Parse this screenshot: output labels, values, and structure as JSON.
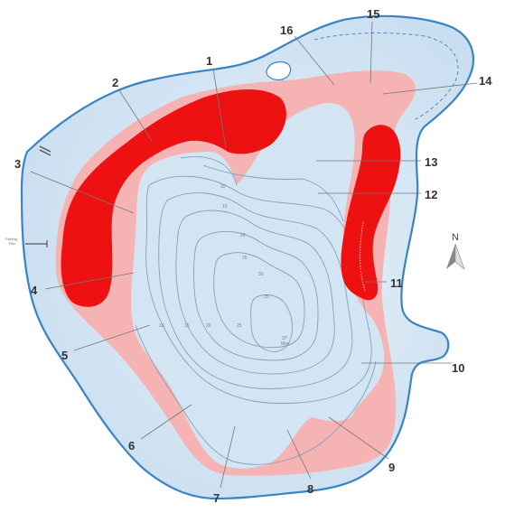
{
  "map": {
    "callouts": [
      "1",
      "2",
      "3",
      "4",
      "5",
      "6",
      "7",
      "8",
      "9",
      "10",
      "11",
      "12",
      "13",
      "14",
      "15",
      "16"
    ],
    "depth_labels": [
      "10",
      "15",
      "20",
      "25",
      "30",
      "35",
      "10",
      "15",
      "20",
      "25"
    ],
    "max_depth_label": [
      "37'",
      "Max"
    ],
    "boat_launch_label": [
      "Fishing",
      "Pier"
    ],
    "north_label": "N",
    "colors": {
      "water": "#d7e8f4",
      "shoreline": "#3a84c4",
      "shallow_zone": "#f6b3b3",
      "hotspot": "#ee1111",
      "contour": "#7ea3bd"
    }
  }
}
